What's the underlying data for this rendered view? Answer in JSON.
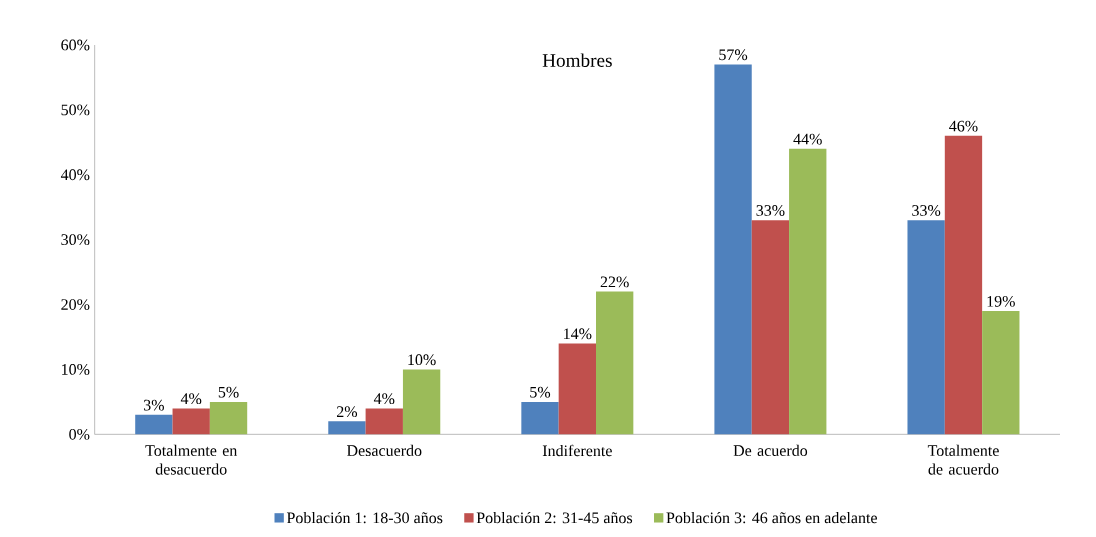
{
  "chart_data": {
    "type": "bar",
    "title": "Hombres",
    "categories": [
      "Totalmente en desacuerdo",
      "Desacuerdo",
      "Indiferente",
      "De acuerdo",
      "Totalmente de acuerdo"
    ],
    "series": [
      {
        "name": "Población 1: 18-30 años",
        "color": "#4f81bd",
        "values": [
          3,
          2,
          5,
          57,
          33
        ],
        "value_labels": [
          "3%",
          "2%",
          "5%",
          "57%",
          "33%"
        ]
      },
      {
        "name": "Población 2: 31-45 años",
        "color": "#c0504d",
        "values": [
          4,
          4,
          14,
          33,
          46
        ],
        "value_labels": [
          "4%",
          "4%",
          "14%",
          "33%",
          "46%"
        ]
      },
      {
        "name": "Población 3: 46 años en adelante",
        "color": "#9bbb59",
        "values": [
          5,
          10,
          22,
          44,
          19
        ],
        "value_labels": [
          "5%",
          "10%",
          "22%",
          "44%",
          "19%"
        ]
      }
    ],
    "ylim": [
      0,
      60
    ],
    "yticks": [
      {
        "value": 0,
        "label": "0%"
      },
      {
        "value": 10,
        "label": "10%"
      },
      {
        "value": 20,
        "label": "20%"
      },
      {
        "value": 30,
        "label": "30%"
      },
      {
        "value": 40,
        "label": "40%"
      },
      {
        "value": 50,
        "label": "50%"
      },
      {
        "value": 60,
        "label": "60%"
      }
    ],
    "grid": false,
    "legend": "bottom"
  }
}
